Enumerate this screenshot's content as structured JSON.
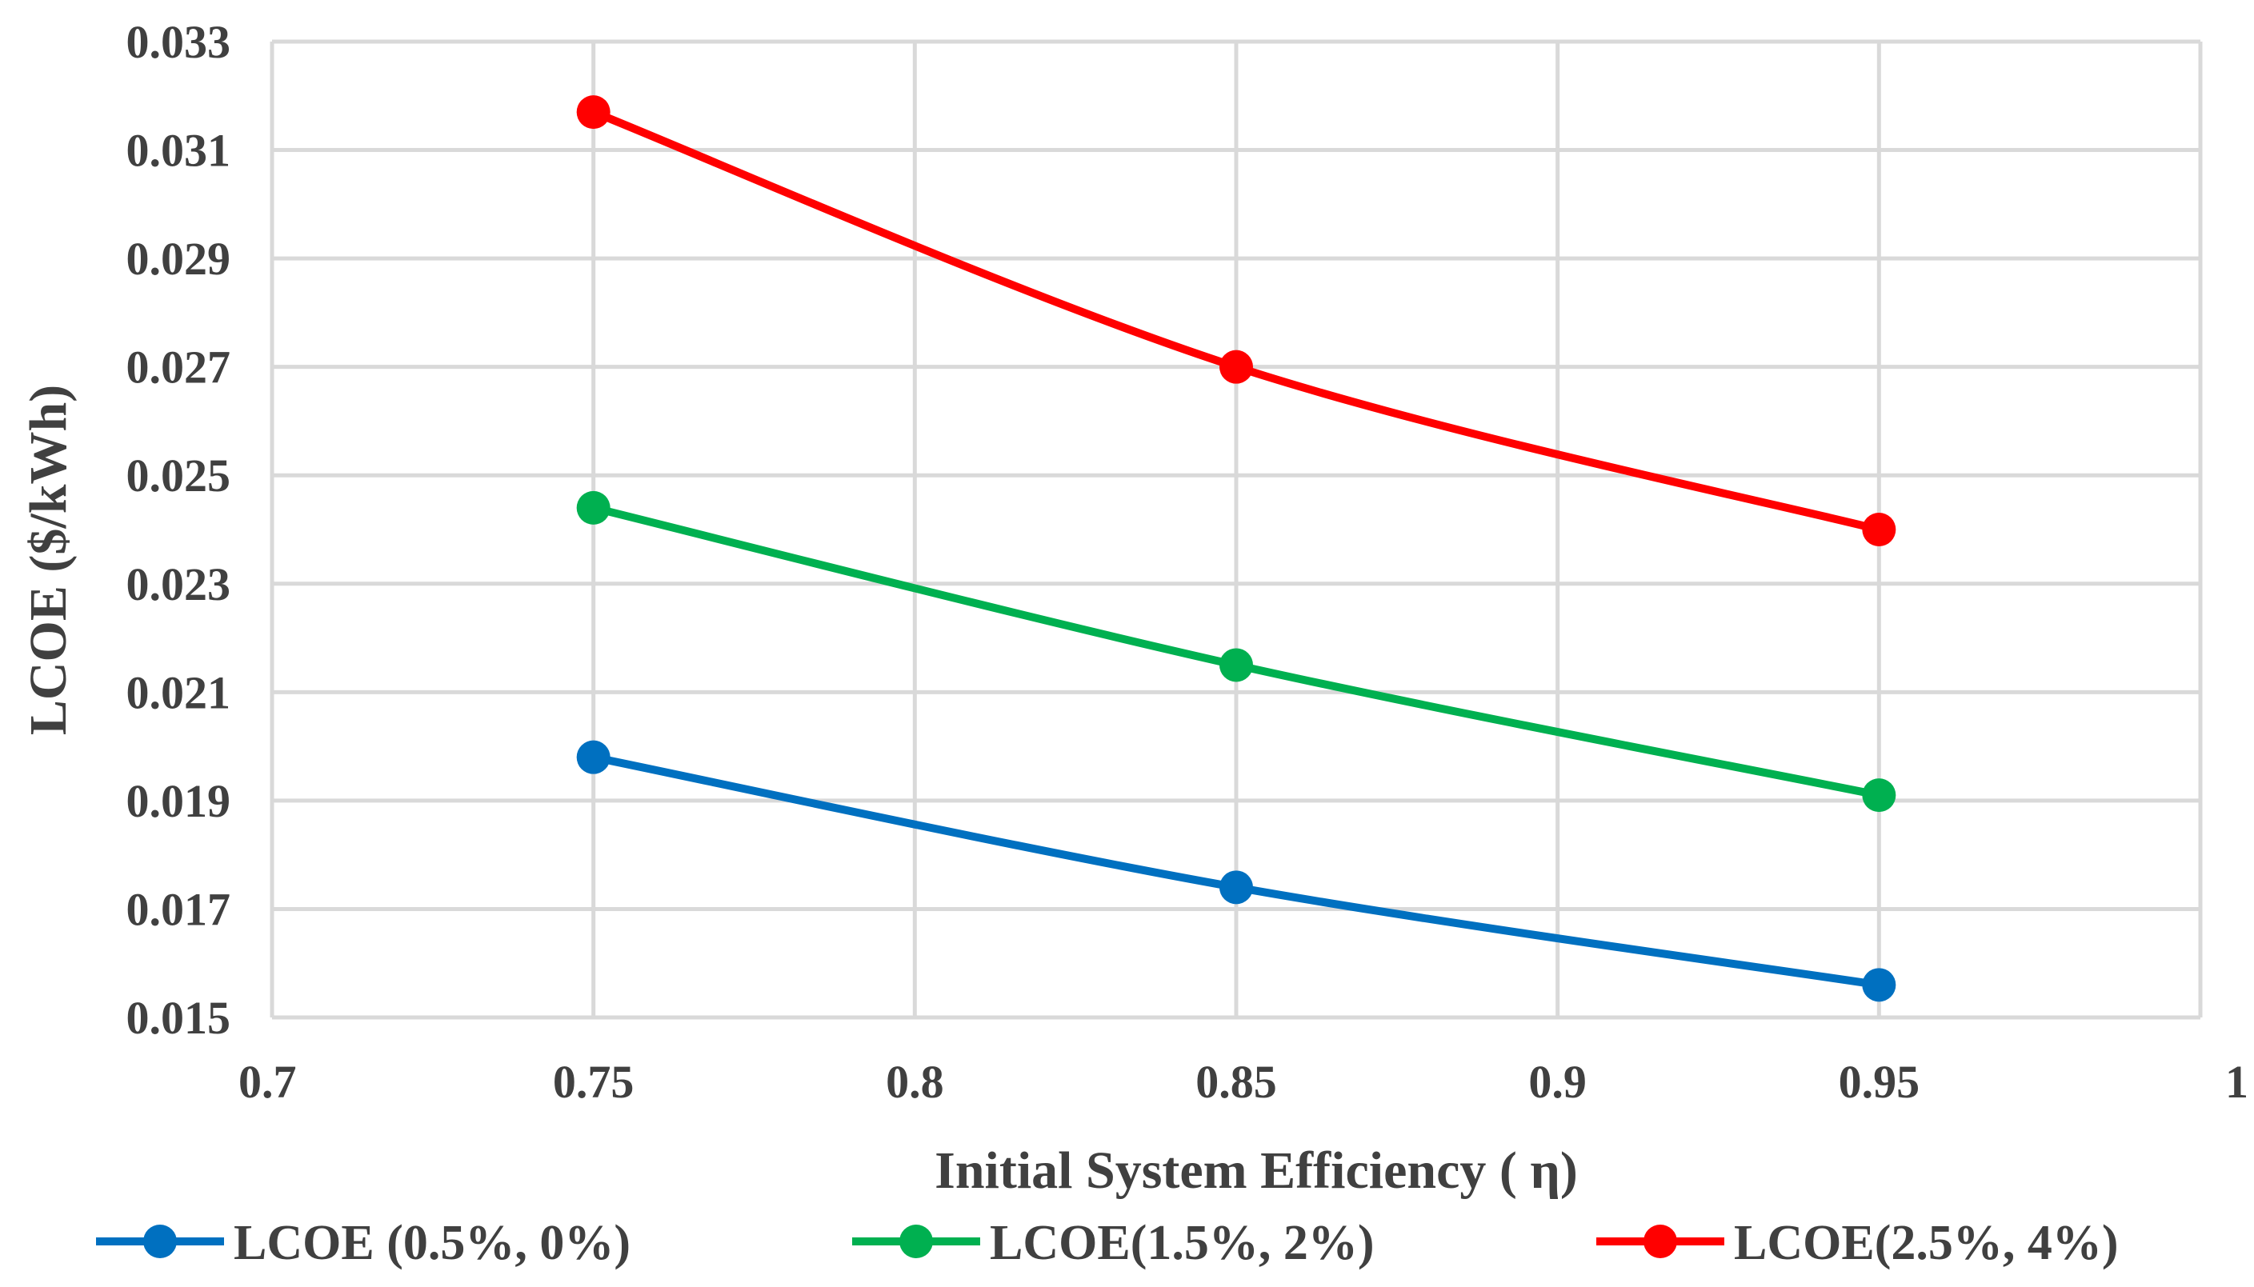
{
  "chart_data": {
    "type": "line",
    "title": "",
    "xlabel": "Initial System Efficiency ( η)",
    "ylabel": "LCOE ($/kWh)",
    "xlim": [
      0.7,
      1
    ],
    "ylim": [
      0.015,
      0.033
    ],
    "x_ticks": [
      "0.7",
      "0.75",
      "0.8",
      "0.85",
      "0.9",
      "0.95",
      "1"
    ],
    "y_ticks": [
      "0.015",
      "0.017",
      "0.019",
      "0.021",
      "0.023",
      "0.025",
      "0.027",
      "0.029",
      "0.031",
      "0.033"
    ],
    "grid": true,
    "legend_position": "bottom",
    "x": [
      0.75,
      0.85,
      0.95
    ],
    "series": [
      {
        "name": "LCOE (0.5%, 0%)",
        "color": "#0070c0",
        "values": [
          0.0198,
          0.0174,
          0.0156
        ]
      },
      {
        "name": "LCOE(1.5%, 2%)",
        "color": "#00b050",
        "values": [
          0.0244,
          0.0215,
          0.0191
        ]
      },
      {
        "name": "LCOE(2.5%, 4%)",
        "color": "#ff0000",
        "values": [
          0.0317,
          0.027,
          0.024
        ]
      }
    ]
  }
}
